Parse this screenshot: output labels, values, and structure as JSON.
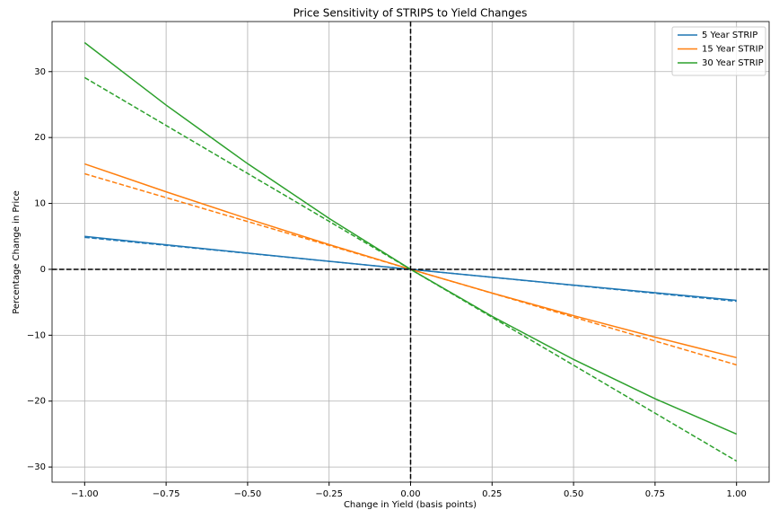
{
  "chart_data": {
    "type": "line",
    "title": "Price Sensitivity of STRIPS to Yield Changes",
    "x_label": "Change in Yield (basis points)",
    "y_label": "Percentage Change in Price",
    "x": [
      -1,
      -0.75,
      -0.5,
      -0.25,
      0,
      0.25,
      0.5,
      0.75,
      1
    ],
    "series": [
      {
        "name": "5 Year STRIP",
        "color": "#1f77b4",
        "style": "solid",
        "values": [
          5.0,
          3.72,
          2.46,
          1.22,
          0,
          -1.2,
          -2.39,
          -3.55,
          -4.7
        ]
      },
      {
        "name": "15 Year STRIP",
        "color": "#ff7f0e",
        "style": "solid",
        "values": [
          16.0,
          11.76,
          7.68,
          3.76,
          0,
          -3.6,
          -7.03,
          -10.29,
          -13.4
        ]
      },
      {
        "name": "30 Year STRIP",
        "color": "#2ca02c",
        "style": "solid",
        "values": [
          34.4,
          24.92,
          16.03,
          7.72,
          0,
          -7.13,
          -13.68,
          -19.63,
          -25.0
        ]
      },
      {
        "color": "#1f77b4",
        "style": "dashed",
        "values": [
          4.85,
          3.64,
          2.43,
          1.21,
          0,
          -1.21,
          -2.43,
          -3.64,
          -4.85
        ]
      },
      {
        "color": "#ff7f0e",
        "style": "dashed",
        "values": [
          14.5,
          10.88,
          7.25,
          3.63,
          0,
          -3.63,
          -7.25,
          -10.88,
          -14.5
        ]
      },
      {
        "color": "#2ca02c",
        "style": "dashed",
        "values": [
          29.1,
          21.83,
          14.55,
          7.28,
          0,
          -7.28,
          -14.55,
          -21.83,
          -29.1
        ]
      }
    ],
    "axhline": 0,
    "axvline": 0,
    "xlim": [
      -1.1,
      1.1
    ],
    "xticks": [
      {
        "value": -1,
        "label": "−1.00"
      },
      {
        "value": -0.75,
        "label": "−0.75"
      },
      {
        "value": -0.5,
        "label": "−0.50"
      },
      {
        "value": -0.25,
        "label": "−0.25"
      },
      {
        "value": 0,
        "label": "0.00"
      },
      {
        "value": 0.25,
        "label": "0.25"
      },
      {
        "value": 0.5,
        "label": "0.50"
      },
      {
        "value": 0.75,
        "label": "0.75"
      },
      {
        "value": 1,
        "label": "1.00"
      }
    ],
    "ylim": [
      -32.3,
      37.6
    ],
    "yticks": [
      {
        "value": -30,
        "label": "−30"
      },
      {
        "value": -20,
        "label": "−20"
      },
      {
        "value": -10,
        "label": "−10"
      },
      0,
      10,
      20,
      30
    ],
    "grid": true,
    "legend": "upper right"
  }
}
